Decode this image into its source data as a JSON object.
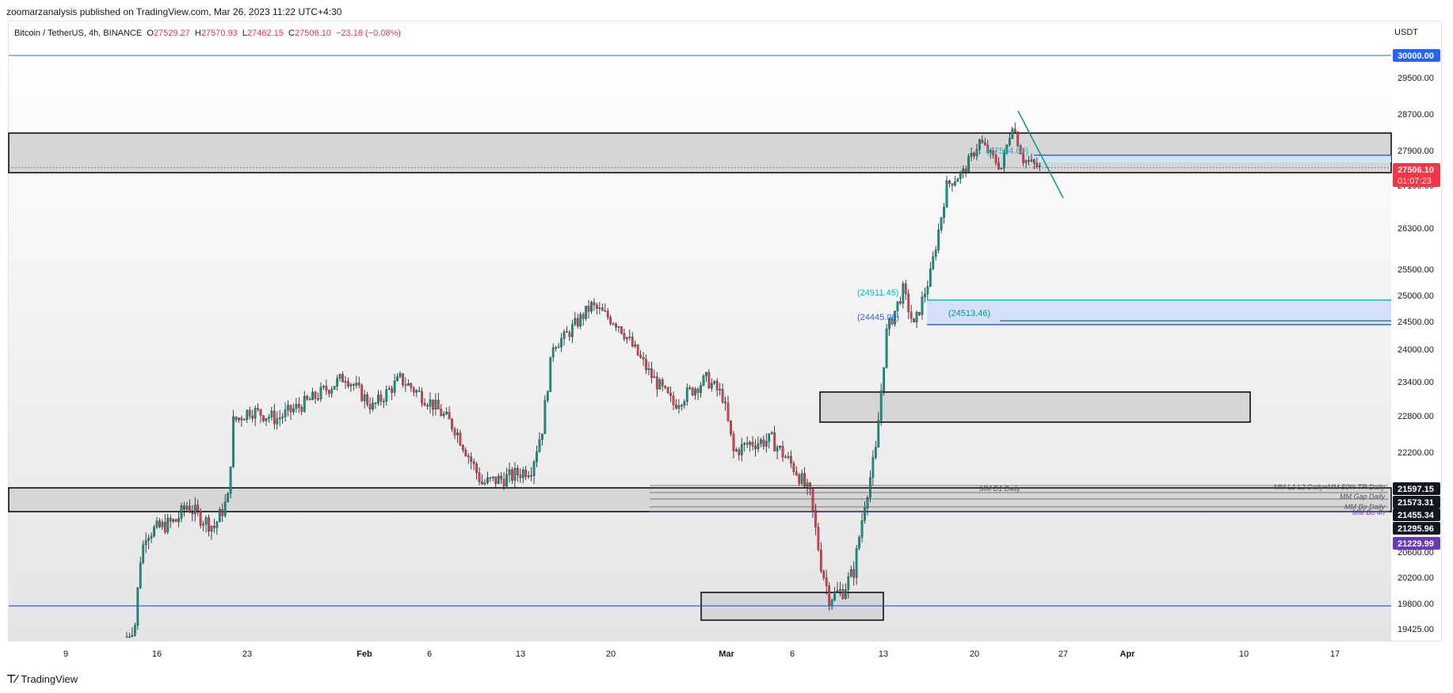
{
  "header": {
    "publisher_line": "zoomarzanalysis published on TradingView.com, Mar 26, 2023 11:22 UTC+4:30",
    "symbol": "Bitcoin / TetherUS, 4h, BINANCE",
    "open_label": "O",
    "open": "27529.27",
    "high_label": "H",
    "high": "27570.93",
    "low_label": "L",
    "low": "27462.15",
    "close_label": "C",
    "close": "27506.10",
    "change": "−23.16 (−0.08%)",
    "currency": "USDT"
  },
  "footer": {
    "brand": "TradingView"
  },
  "colors": {
    "up": "#089981",
    "down": "#f23645",
    "blue_line": "#2962ff",
    "zone_fill": "#d6d6d6",
    "price_tag": "#f23645",
    "purple_tag": "#673ab7"
  },
  "chart_data": {
    "type": "candlestick",
    "ylim": [
      19300,
      30400
    ],
    "x_ticks": [
      "9",
      "16",
      "23",
      "Feb",
      "6",
      "13",
      "20",
      "Mar",
      "6",
      "13",
      "20",
      "27",
      "Apr",
      "10",
      "17"
    ],
    "y_ticks": [
      "29500.00",
      "28700.00",
      "27900.00",
      "27100.00",
      "26300.00",
      "25500.00",
      "25000.00",
      "24500.00",
      "24000.00",
      "23400.00",
      "22800.00",
      "22200.00",
      "20600.00",
      "20200.00",
      "19800.00",
      "19425.00"
    ],
    "y_tick_values": [
      29500,
      28700,
      27900,
      27100,
      26300,
      25500,
      25000,
      24500,
      24000,
      23400,
      22800,
      22200,
      20600,
      20200,
      19800,
      19425
    ],
    "price_tags": [
      {
        "label": "30000.00",
        "value": 30000,
        "color": "#2962ff"
      },
      {
        "label": "27506.10",
        "sub": "01:07:23",
        "value": 27506.1,
        "color": "#f23645"
      },
      {
        "label": "21597.15",
        "value": 21597.15,
        "color": "#131722"
      },
      {
        "label": "21573.31",
        "value": 21573.31,
        "color": "#131722"
      },
      {
        "label": "21455.34",
        "value": 21455.34,
        "color": "#131722"
      },
      {
        "label": "21295.96",
        "value": 21295.96,
        "color": "#131722"
      },
      {
        "label": "21229.99",
        "value": 21229.99,
        "color": "#673ab7"
      }
    ],
    "annotations": [
      {
        "text": "(24911.45)",
        "value": 24911.45,
        "color": "#00bcd4"
      },
      {
        "text": "(24445.08)",
        "value": 24445.08,
        "color": "#2962ff"
      },
      {
        "text": "(24513.46)",
        "value": 24513.46,
        "color": "#089981"
      },
      {
        "text": "(27584.80)",
        "value": 27584.8,
        "color": "#00bcd4"
      }
    ],
    "level_labels": [
      {
        "text": "MM D1 Daily",
        "value": 21597.15
      },
      {
        "text": "MM L1 L2 Daily+MM 50% TR Daily",
        "value": 21597.15
      },
      {
        "text": "MM Gap Daily",
        "value": 21455.34
      },
      {
        "text": "MM Bo Daily",
        "value": 21295.96
      },
      {
        "text": "MM Bo 4h",
        "value": 21229.99
      }
    ],
    "anchors": [
      {
        "i": 0,
        "p": 19300
      },
      {
        "i": 3,
        "p": 19500
      },
      {
        "i": 5,
        "p": 20500
      },
      {
        "i": 7,
        "p": 20900
      },
      {
        "i": 18,
        "p": 21100
      },
      {
        "i": 22,
        "p": 21350
      },
      {
        "i": 27,
        "p": 21150
      },
      {
        "i": 32,
        "p": 21000
      },
      {
        "i": 37,
        "p": 21450
      },
      {
        "i": 39,
        "p": 22700
      },
      {
        "i": 45,
        "p": 22900
      },
      {
        "i": 55,
        "p": 22750
      },
      {
        "i": 68,
        "p": 23100
      },
      {
        "i": 80,
        "p": 23500
      },
      {
        "i": 90,
        "p": 22950
      },
      {
        "i": 100,
        "p": 23450
      },
      {
        "i": 112,
        "p": 23000
      },
      {
        "i": 120,
        "p": 22600
      },
      {
        "i": 130,
        "p": 21700
      },
      {
        "i": 140,
        "p": 21800
      },
      {
        "i": 148,
        "p": 21950
      },
      {
        "i": 152,
        "p": 22600
      },
      {
        "i": 156,
        "p": 24100
      },
      {
        "i": 160,
        "p": 24200
      },
      {
        "i": 170,
        "p": 24800
      },
      {
        "i": 180,
        "p": 24450
      },
      {
        "i": 192,
        "p": 23500
      },
      {
        "i": 200,
        "p": 23000
      },
      {
        "i": 212,
        "p": 23450
      },
      {
        "i": 218,
        "p": 23150
      },
      {
        "i": 222,
        "p": 22200
      },
      {
        "i": 228,
        "p": 22350
      },
      {
        "i": 236,
        "p": 22400
      },
      {
        "i": 245,
        "p": 21900
      },
      {
        "i": 250,
        "p": 21500
      },
      {
        "i": 254,
        "p": 20400
      },
      {
        "i": 257,
        "p": 19900
      },
      {
        "i": 262,
        "p": 20000
      },
      {
        "i": 266,
        "p": 20300
      },
      {
        "i": 270,
        "p": 21400
      },
      {
        "i": 274,
        "p": 22200
      },
      {
        "i": 278,
        "p": 24300
      },
      {
        "i": 284,
        "p": 25100
      },
      {
        "i": 288,
        "p": 24400
      },
      {
        "i": 294,
        "p": 25400
      },
      {
        "i": 300,
        "p": 27100
      },
      {
        "i": 306,
        "p": 27400
      },
      {
        "i": 312,
        "p": 28100
      },
      {
        "i": 320,
        "p": 27500
      },
      {
        "i": 324,
        "p": 28500
      },
      {
        "i": 328,
        "p": 27700
      },
      {
        "i": 334,
        "p": 27500
      }
    ]
  }
}
